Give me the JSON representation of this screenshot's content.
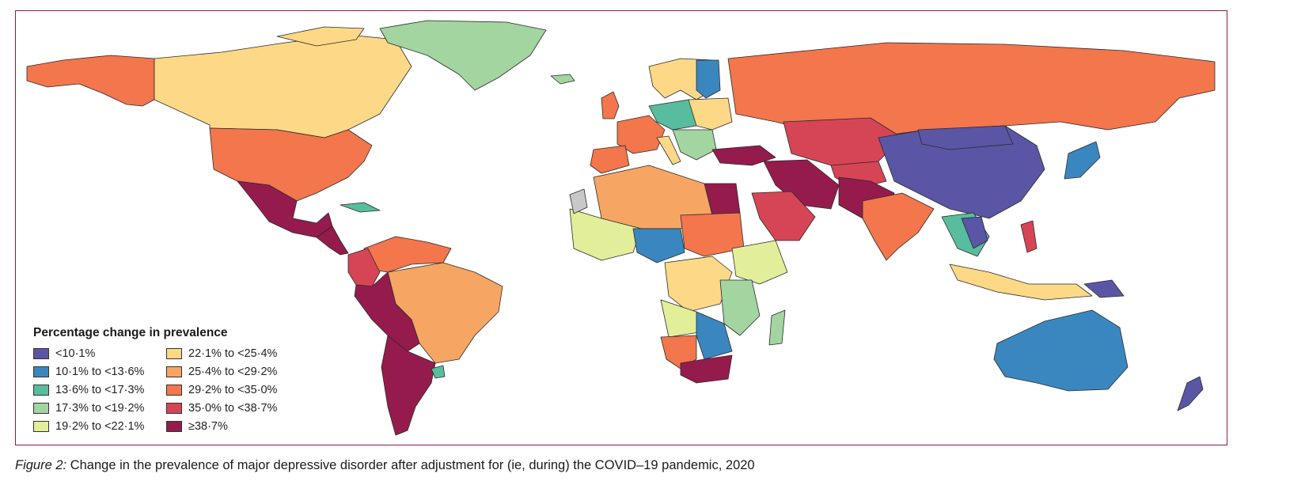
{
  "legend": {
    "title": "Percentage change in prevalence",
    "bins": [
      {
        "label": "<10·1%",
        "color": "#5b55a6"
      },
      {
        "label": "10·1% to <13·6%",
        "color": "#3a87c0"
      },
      {
        "label": "13·6% to <17·3%",
        "color": "#58bc9e"
      },
      {
        "label": "17·3% to <19·2%",
        "color": "#a2d5a0"
      },
      {
        "label": "19·2% to <22·1%",
        "color": "#e2ee9a"
      },
      {
        "label": "22·1% to <25·4%",
        "color": "#fdd886"
      },
      {
        "label": "25·4% to <29·2%",
        "color": "#f7a563"
      },
      {
        "label": "29·2% to <35·0%",
        "color": "#f3764c"
      },
      {
        "label": "35·0% to <38·7%",
        "color": "#d64555"
      },
      {
        "label": "≥38·7%",
        "color": "#961b4d"
      }
    ]
  },
  "caption": {
    "figure_label": "Figure 2:",
    "text": " Change in the prevalence of major depressive disorder after adjustment for (ie, during) the COVID–19 pandemic, 2020"
  },
  "colors": {
    "frame": "#8a1c47",
    "no_data": "#c8c8c8"
  }
}
